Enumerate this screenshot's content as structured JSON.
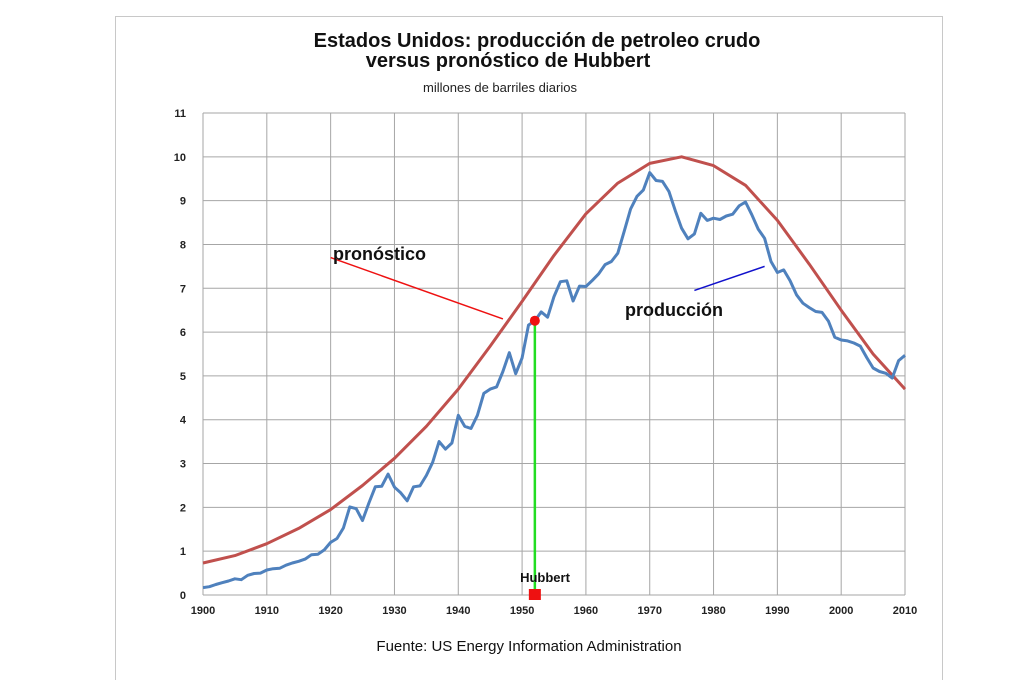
{
  "chart_data": {
    "type": "line",
    "title_line1": "Estados Unidos: producción de petroleo crudo",
    "title_line2": "versus pronóstico de Hubbert",
    "subtitle": "millones de barriles diarios",
    "source": "Fuente: US Energy Information Administration",
    "xlim": [
      1900,
      2010
    ],
    "ylim": [
      0,
      11
    ],
    "x_ticks": [
      1900,
      1910,
      1920,
      1930,
      1940,
      1950,
      1960,
      1970,
      1980,
      1990,
      2000,
      2010
    ],
    "y_ticks": [
      0,
      1,
      2,
      3,
      4,
      5,
      6,
      7,
      8,
      9,
      10,
      11
    ],
    "grid": true,
    "series": [
      {
        "name": "pronóstico",
        "color": "#c0504d",
        "points": [
          [
            1900,
            0.73
          ],
          [
            1905,
            0.9
          ],
          [
            1910,
            1.17
          ],
          [
            1915,
            1.52
          ],
          [
            1920,
            1.95
          ],
          [
            1925,
            2.5
          ],
          [
            1930,
            3.12
          ],
          [
            1935,
            3.85
          ],
          [
            1940,
            4.7
          ],
          [
            1945,
            5.68
          ],
          [
            1950,
            6.7
          ],
          [
            1955,
            7.75
          ],
          [
            1960,
            8.7
          ],
          [
            1965,
            9.4
          ],
          [
            1970,
            9.85
          ],
          [
            1975,
            10.0
          ],
          [
            1980,
            9.8
          ],
          [
            1985,
            9.35
          ],
          [
            1990,
            8.55
          ],
          [
            1995,
            7.55
          ],
          [
            2000,
            6.5
          ],
          [
            2005,
            5.5
          ],
          [
            2010,
            4.7
          ]
        ]
      },
      {
        "name": "producción",
        "color": "#4f81bd",
        "points": [
          [
            1900,
            0.17
          ],
          [
            1901,
            0.19
          ],
          [
            1902,
            0.24
          ],
          [
            1903,
            0.28
          ],
          [
            1904,
            0.32
          ],
          [
            1905,
            0.37
          ],
          [
            1906,
            0.35
          ],
          [
            1907,
            0.45
          ],
          [
            1908,
            0.49
          ],
          [
            1909,
            0.5
          ],
          [
            1910,
            0.57
          ],
          [
            1911,
            0.6
          ],
          [
            1912,
            0.61
          ],
          [
            1913,
            0.68
          ],
          [
            1914,
            0.73
          ],
          [
            1915,
            0.77
          ],
          [
            1916,
            0.82
          ],
          [
            1917,
            0.92
          ],
          [
            1918,
            0.93
          ],
          [
            1919,
            1.03
          ],
          [
            1920,
            1.2
          ],
          [
            1921,
            1.29
          ],
          [
            1922,
            1.53
          ],
          [
            1923,
            2.01
          ],
          [
            1924,
            1.97
          ],
          [
            1925,
            1.7
          ],
          [
            1926,
            2.1
          ],
          [
            1927,
            2.47
          ],
          [
            1928,
            2.48
          ],
          [
            1929,
            2.76
          ],
          [
            1930,
            2.46
          ],
          [
            1931,
            2.33
          ],
          [
            1932,
            2.15
          ],
          [
            1933,
            2.47
          ],
          [
            1934,
            2.49
          ],
          [
            1935,
            2.73
          ],
          [
            1936,
            3.03
          ],
          [
            1937,
            3.5
          ],
          [
            1938,
            3.33
          ],
          [
            1939,
            3.47
          ],
          [
            1940,
            4.1
          ],
          [
            1941,
            3.85
          ],
          [
            1942,
            3.8
          ],
          [
            1943,
            4.1
          ],
          [
            1944,
            4.6
          ],
          [
            1945,
            4.7
          ],
          [
            1946,
            4.75
          ],
          [
            1947,
            5.1
          ],
          [
            1948,
            5.53
          ],
          [
            1949,
            5.05
          ],
          [
            1950,
            5.41
          ],
          [
            1951,
            6.16
          ],
          [
            1952,
            6.26
          ],
          [
            1953,
            6.46
          ],
          [
            1954,
            6.34
          ],
          [
            1955,
            6.81
          ],
          [
            1956,
            7.15
          ],
          [
            1957,
            7.17
          ],
          [
            1958,
            6.71
          ],
          [
            1959,
            7.05
          ],
          [
            1960,
            7.04
          ],
          [
            1961,
            7.18
          ],
          [
            1962,
            7.33
          ],
          [
            1963,
            7.54
          ],
          [
            1964,
            7.61
          ],
          [
            1965,
            7.8
          ],
          [
            1966,
            8.3
          ],
          [
            1967,
            8.81
          ],
          [
            1968,
            9.1
          ],
          [
            1969,
            9.24
          ],
          [
            1970,
            9.64
          ],
          [
            1971,
            9.46
          ],
          [
            1972,
            9.44
          ],
          [
            1973,
            9.21
          ],
          [
            1974,
            8.77
          ],
          [
            1975,
            8.37
          ],
          [
            1976,
            8.13
          ],
          [
            1977,
            8.24
          ],
          [
            1978,
            8.71
          ],
          [
            1979,
            8.55
          ],
          [
            1980,
            8.6
          ],
          [
            1981,
            8.57
          ],
          [
            1982,
            8.65
          ],
          [
            1983,
            8.69
          ],
          [
            1984,
            8.88
          ],
          [
            1985,
            8.97
          ],
          [
            1986,
            8.68
          ],
          [
            1987,
            8.35
          ],
          [
            1988,
            8.14
          ],
          [
            1989,
            7.61
          ],
          [
            1990,
            7.36
          ],
          [
            1991,
            7.42
          ],
          [
            1992,
            7.17
          ],
          [
            1993,
            6.85
          ],
          [
            1994,
            6.66
          ],
          [
            1995,
            6.56
          ],
          [
            1996,
            6.47
          ],
          [
            1997,
            6.45
          ],
          [
            1998,
            6.25
          ],
          [
            1999,
            5.88
          ],
          [
            2000,
            5.82
          ],
          [
            2001,
            5.8
          ],
          [
            2002,
            5.75
          ],
          [
            2003,
            5.68
          ],
          [
            2004,
            5.42
          ],
          [
            2005,
            5.18
          ],
          [
            2006,
            5.1
          ],
          [
            2007,
            5.06
          ],
          [
            2008,
            4.95
          ],
          [
            2009,
            5.35
          ],
          [
            2010,
            5.47
          ]
        ]
      }
    ],
    "annotations": {
      "forecast_label": "pronóstico",
      "production_label": "producción",
      "forecast_pointer": {
        "from": [
          1920,
          7.7
        ],
        "to": [
          1947,
          6.3
        ],
        "color": "#ee1111"
      },
      "production_pointer": {
        "from": [
          1977,
          6.95
        ],
        "to": [
          1988,
          7.5
        ],
        "color": "#1111cc"
      },
      "hubbert_marker": {
        "label": "Hubbert",
        "year": 1952,
        "value": 6.26,
        "line_color": "#22dd22",
        "point_color": "#ee1111"
      }
    }
  }
}
